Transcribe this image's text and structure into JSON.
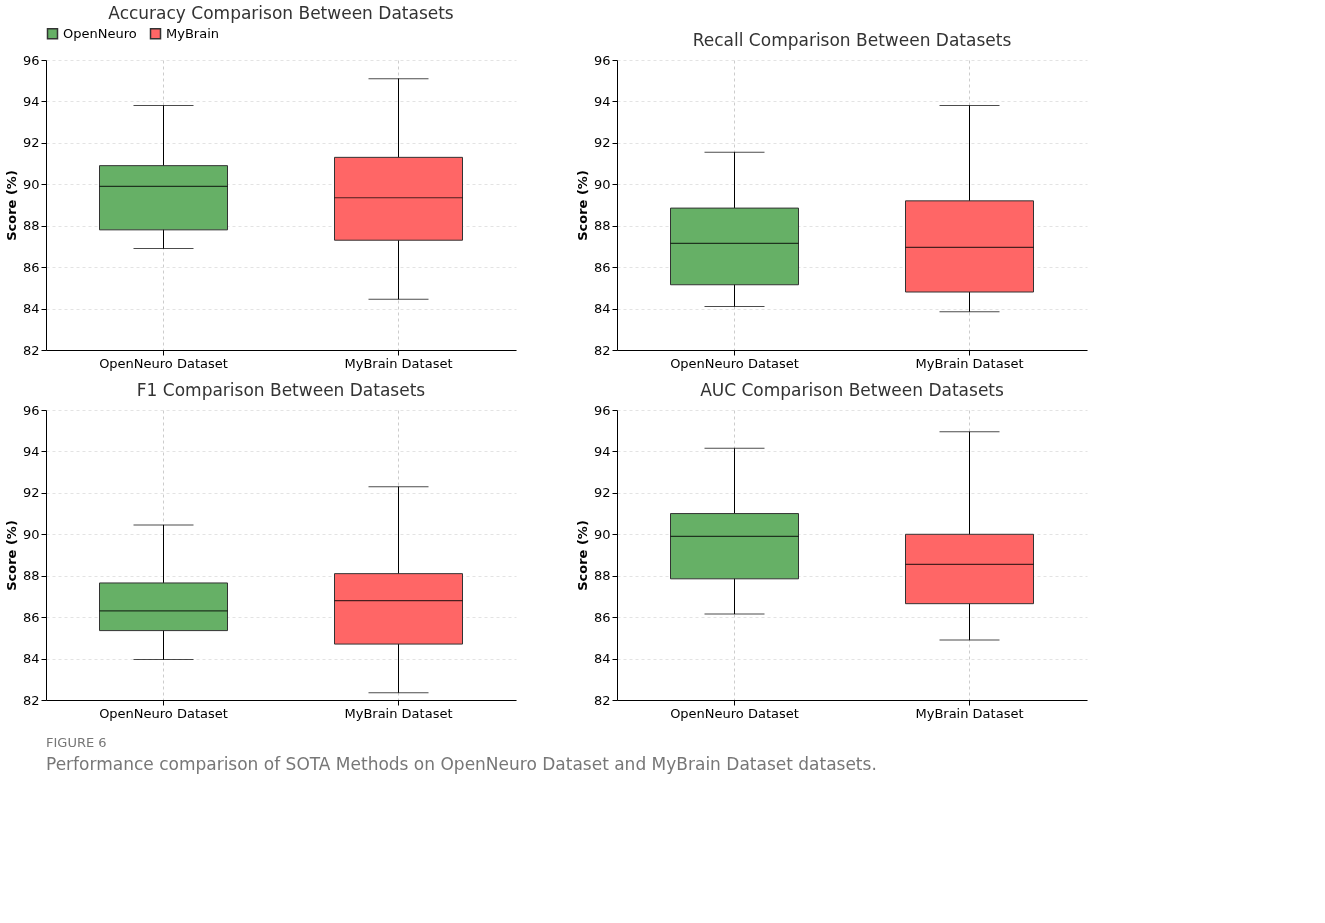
{
  "chart_data": [
    {
      "type": "box",
      "title": "Accuracy Comparison Between Datasets",
      "ylabel": "Score (%)",
      "categories": [
        "OpenNeuro Dataset",
        "MyBrain Dataset"
      ],
      "ylim": [
        82,
        96
      ],
      "yticks": [
        82,
        84,
        86,
        88,
        90,
        92,
        94,
        96
      ],
      "grid": true,
      "legend": "top",
      "series": [
        {
          "name": "OpenNeuro",
          "color": "#66b066",
          "boxes": [
            {
              "low": 86.9,
              "q1": 87.8,
              "median": 89.9,
              "q3": 90.9,
              "high": 93.8
            },
            null
          ]
        },
        {
          "name": "MyBrain",
          "color": "#ff6666",
          "boxes": [
            null,
            {
              "low": 84.45,
              "q1": 87.3,
              "median": 89.35,
              "q3": 91.3,
              "high": 95.1
            }
          ]
        }
      ]
    },
    {
      "type": "box",
      "title": "Recall Comparison Between Datasets",
      "ylabel": "Score (%)",
      "categories": [
        "OpenNeuro Dataset",
        "MyBrain Dataset"
      ],
      "ylim": [
        82,
        96
      ],
      "yticks": [
        82,
        84,
        86,
        88,
        90,
        92,
        94,
        96
      ],
      "grid": true,
      "series": [
        {
          "color": "#66b066",
          "boxes": [
            {
              "low": 84.1,
              "q1": 85.15,
              "median": 87.15,
              "q3": 88.85,
              "high": 91.55
            },
            null
          ]
        },
        {
          "color": "#ff6666",
          "boxes": [
            null,
            {
              "low": 83.85,
              "q1": 84.8,
              "median": 86.95,
              "q3": 89.2,
              "high": 93.8
            }
          ]
        }
      ]
    },
    {
      "type": "box",
      "title": "F1 Comparison Between Datasets",
      "ylabel": "Score (%)",
      "categories": [
        "OpenNeuro Dataset",
        "MyBrain Dataset"
      ],
      "ylim": [
        82,
        96
      ],
      "yticks": [
        82,
        84,
        86,
        88,
        90,
        92,
        94,
        96
      ],
      "grid": true,
      "series": [
        {
          "color": "#66b066",
          "boxes": [
            {
              "low": 83.95,
              "q1": 85.35,
              "median": 86.3,
              "q3": 87.65,
              "high": 90.45
            },
            null
          ]
        },
        {
          "color": "#ff6666",
          "boxes": [
            null,
            {
              "low": 82.35,
              "q1": 84.7,
              "median": 86.8,
              "q3": 88.1,
              "high": 92.3
            }
          ]
        }
      ]
    },
    {
      "type": "box",
      "title": "AUC Comparison Between Datasets",
      "ylabel": "Score (%)",
      "categories": [
        "OpenNeuro Dataset",
        "MyBrain Dataset"
      ],
      "ylim": [
        82,
        96
      ],
      "yticks": [
        82,
        84,
        86,
        88,
        90,
        92,
        94,
        96
      ],
      "grid": true,
      "annotations": [
        "FIGURE 6",
        "Performance comparison of SOTA Methods on OpenNeuro Dataset and MyBrain Dataset datasets."
      ],
      "series": [
        {
          "color": "#66b066",
          "boxes": [
            {
              "low": 86.15,
              "q1": 87.85,
              "median": 89.9,
              "q3": 91.0,
              "high": 94.15
            },
            null
          ]
        },
        {
          "color": "#ff6666",
          "boxes": [
            null,
            {
              "low": 84.9,
              "q1": 86.65,
              "median": 88.55,
              "q3": 90.0,
              "high": 94.95
            }
          ]
        }
      ]
    }
  ]
}
